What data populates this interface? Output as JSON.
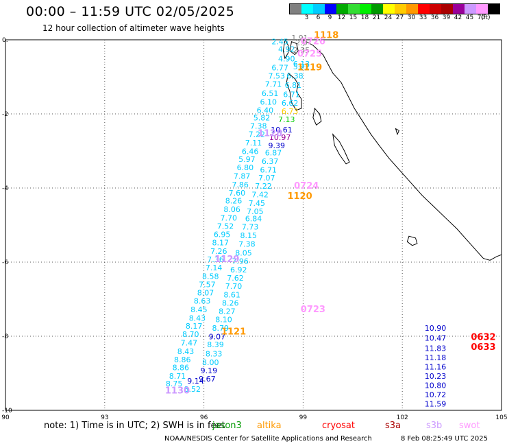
{
  "header": {
    "title": "00:00 – 11:59 UTC 02/05/2025",
    "subtitle": "12 hour collection of altimeter wave heights"
  },
  "legend": {
    "unit": "(ft)",
    "items": [
      {
        "label": "",
        "color": "#808080"
      },
      {
        "label": "3",
        "color": "#00ffff"
      },
      {
        "label": "6",
        "color": "#00ccff"
      },
      {
        "label": "9",
        "color": "#0000ff"
      },
      {
        "label": "12",
        "color": "#00aa00"
      },
      {
        "label": "15",
        "color": "#33dd33"
      },
      {
        "label": "18",
        "color": "#00ee00"
      },
      {
        "label": "21",
        "color": "#009900"
      },
      {
        "label": "24",
        "color": "#ffff00"
      },
      {
        "label": "27",
        "color": "#ffcc00"
      },
      {
        "label": "30",
        "color": "#ff9900"
      },
      {
        "label": "33",
        "color": "#ff0000"
      },
      {
        "label": "36",
        "color": "#cc0000"
      },
      {
        "label": "39",
        "color": "#aa0000"
      },
      {
        "label": "42",
        "color": "#990099"
      },
      {
        "label": "45",
        "color": "#cc99ff"
      },
      {
        "label": "70",
        "color": "#ff99ff"
      },
      {
        "label": "",
        "color": "#000000"
      }
    ]
  },
  "map": {
    "lon_range": [
      90,
      105
    ],
    "lat_range": [
      -10,
      0
    ],
    "x_ticks": [
      {
        "value": 90,
        "label": "90"
      },
      {
        "value": 93,
        "label": "93"
      },
      {
        "value": 96,
        "label": "96"
      },
      {
        "value": 99,
        "label": "99"
      },
      {
        "value": 102,
        "label": "102"
      },
      {
        "value": 105,
        "label": "105"
      }
    ],
    "y_ticks": [
      {
        "value": 0,
        "label": "0."
      },
      {
        "value": -2,
        "label": "-2"
      },
      {
        "value": -4,
        "label": "-4"
      },
      {
        "value": -6,
        "label": "-6"
      },
      {
        "value": -8,
        "label": "-8"
      },
      {
        "value": -10,
        "label": "-10"
      }
    ],
    "grid": "dotted"
  },
  "observations": [
    {
      "lon": 98.9,
      "lat": -0.02,
      "text": "1.91",
      "color": "#808080"
    },
    {
      "lon": 98.3,
      "lat": -0.12,
      "text": "2.45",
      "color": "#00ccff"
    },
    {
      "lon": 98.95,
      "lat": -0.15,
      "text": "2.0",
      "color": "#808080"
    },
    {
      "lon": 98.5,
      "lat": -0.32,
      "text": "4.92",
      "color": "#00ccff"
    },
    {
      "lon": 98.95,
      "lat": -0.35,
      "text": "2.35",
      "color": "#808080"
    },
    {
      "lon": 98.5,
      "lat": -0.58,
      "text": "4.90",
      "color": "#00ccff"
    },
    {
      "lon": 98.95,
      "lat": -0.72,
      "text": "6.13",
      "color": "#00ccff"
    },
    {
      "lon": 98.3,
      "lat": -0.82,
      "text": "6.77",
      "color": "#00ccff"
    },
    {
      "lon": 98.95,
      "lat": -0.8,
      "text": "5.22",
      "color": "#00ccff"
    },
    {
      "lon": 98.2,
      "lat": -1.05,
      "text": "7.53",
      "color": "#00ccff"
    },
    {
      "lon": 98.75,
      "lat": -1.05,
      "text": "6.38",
      "color": "#00ccff"
    },
    {
      "lon": 98.1,
      "lat": -1.27,
      "text": "7.71",
      "color": "#00ccff"
    },
    {
      "lon": 98.7,
      "lat": -1.3,
      "text": "6.81",
      "color": "#00ccff"
    },
    {
      "lon": 98.0,
      "lat": -1.52,
      "text": "6.51",
      "color": "#00ccff"
    },
    {
      "lon": 98.65,
      "lat": -1.55,
      "text": "6.71",
      "color": "#00ccff"
    },
    {
      "lon": 97.95,
      "lat": -1.75,
      "text": "6.10",
      "color": "#00ccff"
    },
    {
      "lon": 98.6,
      "lat": -1.78,
      "text": "6.62",
      "color": "#00ccff"
    },
    {
      "lon": 97.85,
      "lat": -1.97,
      "text": "6.40",
      "color": "#00ccff"
    },
    {
      "lon": 98.6,
      "lat": -2.0,
      "text": "6.73",
      "color": "#ffcc00"
    },
    {
      "lon": 97.75,
      "lat": -2.18,
      "text": "5.82",
      "color": "#00ccff"
    },
    {
      "lon": 98.5,
      "lat": -2.22,
      "text": "7.13",
      "color": "#00cc00"
    },
    {
      "lon": 97.65,
      "lat": -2.4,
      "text": "7.38",
      "color": "#00ccff"
    },
    {
      "lon": 98.35,
      "lat": -2.5,
      "text": "10.61",
      "color": "#0000cc"
    },
    {
      "lon": 97.6,
      "lat": -2.62,
      "text": "7.22",
      "color": "#00ccff"
    },
    {
      "lon": 98.3,
      "lat": -2.7,
      "text": "10.97",
      "color": "#990099"
    },
    {
      "lon": 97.5,
      "lat": -2.85,
      "text": "7.11",
      "color": "#00ccff"
    },
    {
      "lon": 98.2,
      "lat": -2.93,
      "text": "9.39",
      "color": "#0000cc"
    },
    {
      "lon": 97.4,
      "lat": -3.08,
      "text": "6.46",
      "color": "#00ccff"
    },
    {
      "lon": 98.1,
      "lat": -3.12,
      "text": "6.87",
      "color": "#00ccff"
    },
    {
      "lon": 97.3,
      "lat": -3.3,
      "text": "5.97",
      "color": "#00ccff"
    },
    {
      "lon": 98.0,
      "lat": -3.35,
      "text": "6.37",
      "color": "#00ccff"
    },
    {
      "lon": 97.25,
      "lat": -3.52,
      "text": "6.80",
      "color": "#00ccff"
    },
    {
      "lon": 97.95,
      "lat": -3.58,
      "text": "6.71",
      "color": "#00ccff"
    },
    {
      "lon": 97.15,
      "lat": -3.75,
      "text": "7.87",
      "color": "#00ccff"
    },
    {
      "lon": 97.9,
      "lat": -3.8,
      "text": "7.07",
      "color": "#00ccff"
    },
    {
      "lon": 97.1,
      "lat": -3.98,
      "text": "7.86",
      "color": "#00ccff"
    },
    {
      "lon": 97.8,
      "lat": -4.02,
      "text": "7.22",
      "color": "#00ccff"
    },
    {
      "lon": 97.0,
      "lat": -4.2,
      "text": "7.60",
      "color": "#00ccff"
    },
    {
      "lon": 97.7,
      "lat": -4.25,
      "text": "7.42",
      "color": "#00ccff"
    },
    {
      "lon": 96.9,
      "lat": -4.42,
      "text": "8.26",
      "color": "#00ccff"
    },
    {
      "lon": 97.6,
      "lat": -4.48,
      "text": "7.45",
      "color": "#00ccff"
    },
    {
      "lon": 96.85,
      "lat": -4.65,
      "text": "8.06",
      "color": "#00ccff"
    },
    {
      "lon": 97.55,
      "lat": -4.7,
      "text": "7.05",
      "color": "#00ccff"
    },
    {
      "lon": 96.75,
      "lat": -4.88,
      "text": "7.70",
      "color": "#00ccff"
    },
    {
      "lon": 97.5,
      "lat": -4.9,
      "text": "6.84",
      "color": "#00ccff"
    },
    {
      "lon": 96.65,
      "lat": -5.1,
      "text": "7.52",
      "color": "#00ccff"
    },
    {
      "lon": 97.4,
      "lat": -5.12,
      "text": "7.73",
      "color": "#00ccff"
    },
    {
      "lon": 96.55,
      "lat": -5.32,
      "text": "6.95",
      "color": "#00ccff"
    },
    {
      "lon": 97.35,
      "lat": -5.35,
      "text": "8.15",
      "color": "#00ccff"
    },
    {
      "lon": 96.5,
      "lat": -5.55,
      "text": "8.17",
      "color": "#00ccff"
    },
    {
      "lon": 97.3,
      "lat": -5.58,
      "text": "7.38",
      "color": "#00ccff"
    },
    {
      "lon": 96.45,
      "lat": -5.78,
      "text": "7.26",
      "color": "#00ccff"
    },
    {
      "lon": 97.2,
      "lat": -5.82,
      "text": "8.05",
      "color": "#00ccff"
    },
    {
      "lon": 96.35,
      "lat": -6.0,
      "text": "7.36",
      "color": "#00ccff"
    },
    {
      "lon": 97.1,
      "lat": -6.05,
      "text": "7.96",
      "color": "#00ccff"
    },
    {
      "lon": 96.3,
      "lat": -6.22,
      "text": "7.14",
      "color": "#00ccff"
    },
    {
      "lon": 97.05,
      "lat": -6.28,
      "text": "6.92",
      "color": "#00ccff"
    },
    {
      "lon": 96.2,
      "lat": -6.45,
      "text": "8.58",
      "color": "#00ccff"
    },
    {
      "lon": 96.95,
      "lat": -6.5,
      "text": "7.62",
      "color": "#00ccff"
    },
    {
      "lon": 96.1,
      "lat": -6.68,
      "text": "7.57",
      "color": "#00ccff"
    },
    {
      "lon": 96.9,
      "lat": -6.72,
      "text": "7.70",
      "color": "#00ccff"
    },
    {
      "lon": 96.05,
      "lat": -6.9,
      "text": "8.07",
      "color": "#00ccff"
    },
    {
      "lon": 96.85,
      "lat": -6.95,
      "text": "8.61",
      "color": "#00ccff"
    },
    {
      "lon": 95.95,
      "lat": -7.12,
      "text": "8.63",
      "color": "#00ccff"
    },
    {
      "lon": 96.8,
      "lat": -7.18,
      "text": "8.26",
      "color": "#00ccff"
    },
    {
      "lon": 95.85,
      "lat": -7.35,
      "text": "8.45",
      "color": "#00ccff"
    },
    {
      "lon": 96.7,
      "lat": -7.4,
      "text": "8.27",
      "color": "#00ccff"
    },
    {
      "lon": 95.8,
      "lat": -7.58,
      "text": "8.43",
      "color": "#00ccff"
    },
    {
      "lon": 96.6,
      "lat": -7.62,
      "text": "8.10",
      "color": "#00ccff"
    },
    {
      "lon": 95.7,
      "lat": -7.8,
      "text": "8.17",
      "color": "#00ccff"
    },
    {
      "lon": 96.5,
      "lat": -7.85,
      "text": "8.79",
      "color": "#00ccff"
    },
    {
      "lon": 95.6,
      "lat": -8.02,
      "text": "8.70",
      "color": "#00ccff"
    },
    {
      "lon": 96.4,
      "lat": -8.08,
      "text": "9.07",
      "color": "#0000cc"
    },
    {
      "lon": 95.55,
      "lat": -8.25,
      "text": "7.47",
      "color": "#00ccff"
    },
    {
      "lon": 96.35,
      "lat": -8.3,
      "text": "8.39",
      "color": "#00ccff"
    },
    {
      "lon": 95.45,
      "lat": -8.48,
      "text": "8.43",
      "color": "#00ccff"
    },
    {
      "lon": 96.3,
      "lat": -8.55,
      "text": "8.33",
      "color": "#00ccff"
    },
    {
      "lon": 95.35,
      "lat": -8.7,
      "text": "8.86",
      "color": "#00ccff"
    },
    {
      "lon": 96.2,
      "lat": -8.78,
      "text": "8.00",
      "color": "#00ccff"
    },
    {
      "lon": 95.3,
      "lat": -8.92,
      "text": "8.86",
      "color": "#00ccff"
    },
    {
      "lon": 96.15,
      "lat": -9.0,
      "text": "9.19",
      "color": "#0000cc"
    },
    {
      "lon": 95.2,
      "lat": -9.15,
      "text": "8.71",
      "color": "#00ccff"
    },
    {
      "lon": 96.1,
      "lat": -9.22,
      "text": "9.67",
      "color": "#0000cc"
    },
    {
      "lon": 95.1,
      "lat": -9.35,
      "text": "8.75",
      "color": "#00ccff"
    },
    {
      "lon": 95.75,
      "lat": -9.28,
      "text": "9.14",
      "color": "#0000cc"
    },
    {
      "lon": 95.65,
      "lat": -9.5,
      "text": "8.52",
      "color": "#00ccff"
    },
    {
      "lon": 103.0,
      "lat": -7.85,
      "text": "10.90",
      "color": "#0000cc"
    },
    {
      "lon": 103.0,
      "lat": -8.12,
      "text": "10.47",
      "color": "#0000cc"
    },
    {
      "lon": 103.0,
      "lat": -8.4,
      "text": "11.83",
      "color": "#0000cc"
    },
    {
      "lon": 103.0,
      "lat": -8.65,
      "text": "11.18",
      "color": "#0000cc"
    },
    {
      "lon": 103.0,
      "lat": -8.9,
      "text": "11.16",
      "color": "#0000cc"
    },
    {
      "lon": 103.0,
      "lat": -9.15,
      "text": "10.23",
      "color": "#0000cc"
    },
    {
      "lon": 103.0,
      "lat": -9.4,
      "text": "10.80",
      "color": "#0000cc"
    },
    {
      "lon": 103.0,
      "lat": -9.65,
      "text": "10.72",
      "color": "#0000cc"
    },
    {
      "lon": 103.0,
      "lat": -9.9,
      "text": "11.59",
      "color": "#0000cc"
    }
  ],
  "pass_times": [
    {
      "lon": 99.7,
      "lat": 0.05,
      "text": "1118",
      "color": "#ff9900"
    },
    {
      "lon": 99.3,
      "lat": -0.12,
      "text": "0726",
      "color": "#ff99ff"
    },
    {
      "lon": 99.2,
      "lat": -0.45,
      "text": "0725",
      "color": "#ff99ff"
    },
    {
      "lon": 99.2,
      "lat": -0.82,
      "text": "1119",
      "color": "#ff9900"
    },
    {
      "lon": 98.0,
      "lat": -2.6,
      "text": "1128",
      "color": "#cc99ff"
    },
    {
      "lon": 99.1,
      "lat": -4.02,
      "text": "0724",
      "color": "#ff99ff"
    },
    {
      "lon": 98.9,
      "lat": -4.3,
      "text": "1120",
      "color": "#ff9900"
    },
    {
      "lon": 96.7,
      "lat": -6.0,
      "text": "1129",
      "color": "#cc99ff"
    },
    {
      "lon": 99.3,
      "lat": -7.35,
      "text": "0723",
      "color": "#ff99ff"
    },
    {
      "lon": 96.9,
      "lat": -7.95,
      "text": "1121",
      "color": "#ff9900"
    },
    {
      "lon": 104.45,
      "lat": -8.1,
      "text": "0632",
      "color": "#ff0000"
    },
    {
      "lon": 104.45,
      "lat": -8.37,
      "text": "0633",
      "color": "#ff0000"
    },
    {
      "lon": 95.2,
      "lat": -9.55,
      "text": "1130",
      "color": "#cc99ff"
    }
  ],
  "footer": {
    "note": "note:  1) Time is in UTC;  2) SWH is in feet",
    "satellites": [
      {
        "name": "jason3",
        "color": "#009900"
      },
      {
        "name": "altika",
        "color": "#ff9900"
      },
      {
        "name": "cryosat",
        "color": "#ff0000"
      },
      {
        "name": "s3a",
        "color": "#aa0000"
      },
      {
        "name": "s3b",
        "color": "#cc99ff"
      },
      {
        "name": "swot",
        "color": "#ff99ff"
      }
    ],
    "credit": "NOAA/NESDIS Center for Satellite Applications and Research",
    "generated": "8 Feb 08:25:49 UTC 2025"
  }
}
